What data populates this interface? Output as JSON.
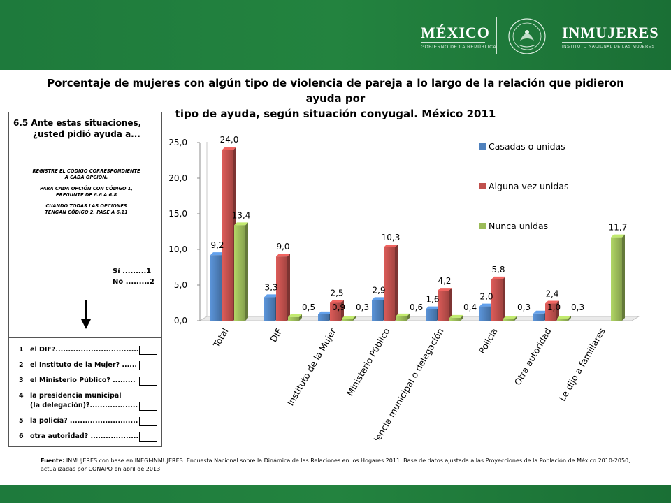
{
  "header": {
    "mexico_title": "MÉXICO",
    "mexico_subtitle": "GOBIERNO DE LA REPÚBLICA",
    "inmujeres_title": "INMUJERES",
    "inmujeres_subtitle": "INSTITUTO NACIONAL DE LAS MUJERES"
  },
  "title_line1": "Porcentaje de mujeres con algún tipo de violencia de pareja a lo largo de la relación que pidieron ayuda por",
  "title_line2": "tipo de ayuda, según situación conyugal. México 2011",
  "questionnaire": {
    "q_line1": "6.5 Ante estas situaciones,",
    "q_line2": "¿usted pidió ayuda a...",
    "instr1": "REGISTRE EL CÓDIGO CORRESPONDIENTE",
    "instr2": "A CADA OPCIÓN.",
    "instr3": "PARA CADA OPCIÓN CON CÓDIGO 1,",
    "instr4": "PREGUNTE DE 6.6 A 6.8",
    "instr5": "CUANDO TODAS LAS OPCIONES",
    "instr6": "TENGAN CÓDIGO 2, PASE A 6.11",
    "si": "Sí .........1",
    "no": "No .........2",
    "items": [
      {
        "num": "1",
        "text": "el DIF?..................................."
      },
      {
        "num": "2",
        "text": "el Instituto de la Mujer? ......"
      },
      {
        "num": "3",
        "text": "el Ministerio Público? ........."
      },
      {
        "num": "4",
        "text": "la presidencia municipal"
      },
      {
        "num": "",
        "text": "(la delegación)?....................."
      },
      {
        "num": "5",
        "text": "la policía? ............................"
      },
      {
        "num": "6",
        "text": "otra autoridad? ....................."
      }
    ]
  },
  "chart_data": {
    "type": "bar",
    "categories": [
      "Total",
      "DIF",
      "Instituto de la Mujer",
      "Ministerio Público",
      "Presidencia municipal o delegación",
      "Policía",
      "Otra autoridad",
      "Le dijo a familiares"
    ],
    "series": [
      {
        "name": "Casadas o unidas",
        "values": [
          9.2,
          3.3,
          0.9,
          2.9,
          1.6,
          2.0,
          1.0,
          null
        ],
        "labels": [
          "9,2",
          "3,3",
          "0,9",
          "2,9",
          "1,6",
          "2,0",
          "1,0",
          ""
        ],
        "color": "#4f81bd"
      },
      {
        "name": "Alguna vez unidas",
        "values": [
          24.0,
          9.0,
          2.5,
          10.3,
          4.2,
          5.8,
          2.4,
          null
        ],
        "labels": [
          "24,0",
          "9,0",
          "2,5",
          "10,3",
          "4,2",
          "5,8",
          "2,4",
          ""
        ],
        "color": "#c0504d"
      },
      {
        "name": "Nunca unidas",
        "values": [
          13.4,
          0.5,
          0.3,
          0.6,
          0.4,
          0.3,
          0.3,
          11.7
        ],
        "labels": [
          "13,4",
          "0,5",
          "0,3",
          "0,6",
          "0,4",
          "0,3",
          "0,3",
          "11,7"
        ],
        "color": "#9bbb59"
      }
    ],
    "yticks": [
      "0,0",
      "5,0",
      "10,0",
      "15,0",
      "20,0",
      "25,0"
    ],
    "ylim": [
      0,
      25
    ],
    "legend_position": "top-right",
    "grid": false
  },
  "source_label": "Fuente:",
  "source_text": "INMUJERES con base en INEGI-INMUJERES. Encuesta Nacional sobre la Dinámica de las Relaciones en los Hogares 2011. Base de datos ajustada a las Proyecciones de la Población de México 2010-2050, actualizadas por CONAPO en abril de 2013."
}
